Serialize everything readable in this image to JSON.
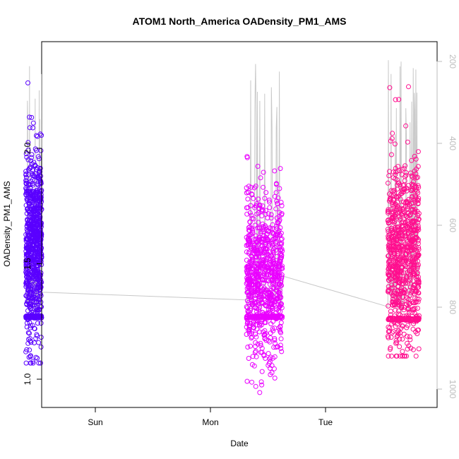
{
  "chart_data": {
    "type": "scatter",
    "title": "ATOM1 North_America OADensity_PM1_AMS",
    "xlabel": "Date",
    "ylabel": "OADensity_PM1_AMS",
    "y_ticks": [
      1.0,
      1.5,
      2.0
    ],
    "y_tick_labels": [
      "1.0",
      "1.5",
      "2.0"
    ],
    "ylim": [
      0.9,
      2.45
    ],
    "x_ticks": [
      "Sun",
      "Mon",
      "Tue"
    ],
    "xlim_hours_label": "time axis, day ticks at midnight",
    "secondary_axis": {
      "description": "pressure/altitude overlay line, inverted",
      "ticks": [
        200,
        400,
        600,
        800,
        1000
      ],
      "tick_labels": [
        "200",
        "400",
        "600",
        "800",
        "1000"
      ],
      "ylim": [
        1020,
        165
      ],
      "color": "#bdbdbd"
    },
    "series": [
      {
        "color": "#5a00ff",
        "x_range_hours": [
          -14.5,
          -11.2
        ],
        "y_center": 1.58,
        "y_spread": 0.2,
        "y_min": 1.07,
        "y_max": 2.3,
        "baseline": 1.27
      },
      {
        "color": "#ea00ff",
        "x_range_hours": [
          31.5,
          39.0
        ],
        "y_center": 1.45,
        "y_spread": 0.18,
        "y_min": 0.93,
        "y_max": 2.27,
        "baseline": 1.27
      },
      {
        "color": "#ff0f8f",
        "x_range_hours": [
          61.0,
          67.5
        ],
        "y_center": 1.55,
        "y_spread": 0.2,
        "y_min": 1.1,
        "y_max": 2.4,
        "baseline": 1.26
      }
    ]
  }
}
